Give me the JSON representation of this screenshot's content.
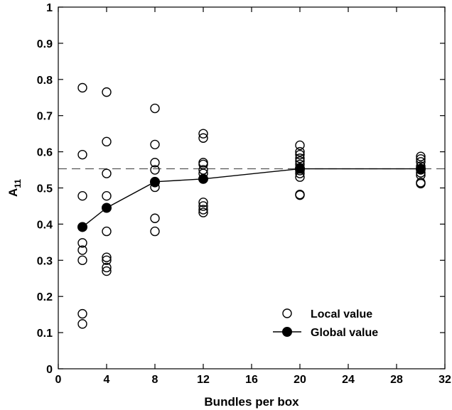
{
  "chart_data": {
    "type": "scatter",
    "xlabel": "Bundles per box",
    "ylabel": "A",
    "ylabel_subscript": "11",
    "xlim": [
      0,
      32
    ],
    "ylim": [
      0,
      1
    ],
    "x_ticks": [
      0,
      4,
      8,
      12,
      16,
      20,
      24,
      28,
      32
    ],
    "y_ticks": [
      0,
      0.1,
      0.2,
      0.3,
      0.4,
      0.5,
      0.6,
      0.7,
      0.8,
      0.9,
      1
    ],
    "x_tick_labels": [
      "0",
      "4",
      "8",
      "12",
      "16",
      "20",
      "24",
      "28",
      "32"
    ],
    "y_tick_labels": [
      "0",
      "0.1",
      "0.2",
      "0.3",
      "0.4",
      "0.5",
      "0.6",
      "0.7",
      "0.8",
      "0.9",
      "1"
    ],
    "reference_line": {
      "y": 0.553,
      "style": "dashed"
    },
    "grid": false,
    "legend_position": "bottom-right",
    "series": [
      {
        "name": "Local value",
        "marker": "open-circle",
        "line": false,
        "points": [
          [
            2,
            0.777
          ],
          [
            2,
            0.592
          ],
          [
            2,
            0.478
          ],
          [
            2,
            0.392
          ],
          [
            2,
            0.348
          ],
          [
            2,
            0.328
          ],
          [
            2,
            0.3
          ],
          [
            2,
            0.152
          ],
          [
            2,
            0.124
          ],
          [
            4,
            0.765
          ],
          [
            4,
            0.628
          ],
          [
            4,
            0.54
          ],
          [
            4,
            0.478
          ],
          [
            4,
            0.38
          ],
          [
            4,
            0.308
          ],
          [
            4,
            0.3
          ],
          [
            4,
            0.28
          ],
          [
            4,
            0.27
          ],
          [
            8,
            0.72
          ],
          [
            8,
            0.62
          ],
          [
            8,
            0.57
          ],
          [
            8,
            0.55
          ],
          [
            8,
            0.515
          ],
          [
            8,
            0.502
          ],
          [
            8,
            0.416
          ],
          [
            8,
            0.38
          ],
          [
            12,
            0.65
          ],
          [
            12,
            0.638
          ],
          [
            12,
            0.57
          ],
          [
            12,
            0.565
          ],
          [
            12,
            0.55
          ],
          [
            12,
            0.54
          ],
          [
            12,
            0.46
          ],
          [
            12,
            0.45
          ],
          [
            12,
            0.44
          ],
          [
            12,
            0.432
          ],
          [
            20,
            0.618
          ],
          [
            20,
            0.6
          ],
          [
            20,
            0.592
          ],
          [
            20,
            0.582
          ],
          [
            20,
            0.574
          ],
          [
            20,
            0.565
          ],
          [
            20,
            0.556
          ],
          [
            20,
            0.548
          ],
          [
            20,
            0.54
          ],
          [
            20,
            0.53
          ],
          [
            20,
            0.482
          ],
          [
            20,
            0.48
          ],
          [
            30,
            0.587
          ],
          [
            30,
            0.58
          ],
          [
            30,
            0.572
          ],
          [
            30,
            0.56
          ],
          [
            30,
            0.55
          ],
          [
            30,
            0.542
          ],
          [
            30,
            0.535
          ],
          [
            30,
            0.515
          ],
          [
            30,
            0.512
          ]
        ]
      },
      {
        "name": "Global value",
        "marker": "filled-circle",
        "line": true,
        "points": [
          [
            2,
            0.392
          ],
          [
            4,
            0.445
          ],
          [
            8,
            0.517
          ],
          [
            12,
            0.525
          ],
          [
            20,
            0.553
          ],
          [
            30,
            0.553
          ]
        ]
      }
    ]
  }
}
